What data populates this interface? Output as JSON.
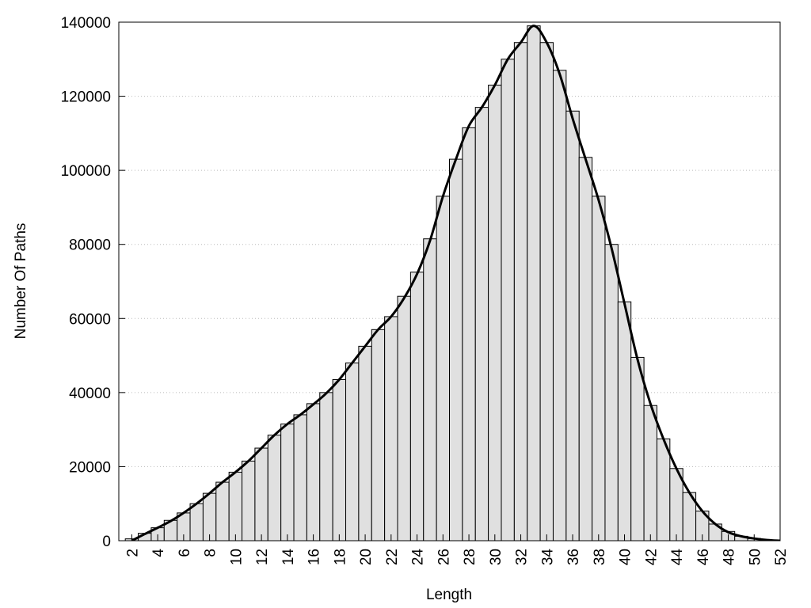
{
  "chart_data": {
    "type": "histogram",
    "xlabel": "Length",
    "ylabel": "Number Of Paths",
    "bins": [
      1.5,
      2.5,
      3.5,
      4.5,
      5.5,
      6.5,
      7.5,
      8.5,
      9.5,
      10.5,
      11.5,
      12.5,
      13.5,
      14.5,
      15.5,
      16.5,
      17.5,
      18.5,
      19.5,
      20.5,
      21.5,
      22.5,
      23.5,
      24.5,
      25.5,
      26.5,
      27.5,
      28.5,
      29.5,
      30.5,
      31.5,
      32.5,
      33.5,
      34.5,
      35.5,
      36.5,
      37.5,
      38.5,
      39.5,
      40.5,
      41.5,
      42.5,
      43.5,
      44.5,
      45.5,
      46.5,
      47.5,
      48.5,
      49.5,
      50.5,
      51.5
    ],
    "values": [
      500,
      2000,
      3500,
      5500,
      7500,
      10000,
      12800,
      15800,
      18500,
      21500,
      25000,
      28500,
      31500,
      34000,
      37000,
      40000,
      43500,
      48000,
      52500,
      57000,
      60500,
      66000,
      72500,
      81500,
      93000,
      103000,
      111500,
      117000,
      123000,
      130000,
      134500,
      139000,
      134500,
      127000,
      116000,
      103500,
      93000,
      80000,
      64500,
      49500,
      36500,
      27500,
      19500,
      13000,
      8000,
      4500,
      2500,
      1200,
      600,
      200
    ],
    "color": "#e0e0e0",
    "curve": {
      "color": "#000000",
      "x": [
        2,
        3,
        4,
        5,
        6,
        7,
        8,
        9,
        10,
        11,
        12,
        13,
        14,
        15,
        16,
        17,
        18,
        19,
        20,
        21,
        22,
        23,
        24,
        25,
        26,
        27,
        28,
        29,
        30,
        31,
        32,
        33,
        34,
        35,
        36,
        37,
        38,
        39,
        40,
        41,
        42,
        43,
        44,
        45,
        46,
        47,
        48,
        49,
        50,
        51,
        52
      ],
      "values": [
        0,
        1800,
        3500,
        5300,
        7500,
        10000,
        12800,
        15800,
        18500,
        21500,
        25000,
        28500,
        31500,
        34000,
        36800,
        39800,
        43500,
        48000,
        52500,
        57000,
        60500,
        65500,
        72000,
        81000,
        93000,
        103000,
        112000,
        117000,
        123000,
        130000,
        134500,
        139000,
        134500,
        126000,
        114000,
        103000,
        92000,
        79000,
        64000,
        49000,
        37000,
        27500,
        19500,
        13000,
        8000,
        4500,
        2300,
        1200,
        600,
        200,
        0
      ]
    },
    "xlim": [
      1,
      52
    ],
    "xticks": [
      2,
      4,
      6,
      8,
      10,
      12,
      14,
      16,
      18,
      20,
      22,
      24,
      26,
      28,
      30,
      32,
      34,
      36,
      38,
      40,
      42,
      44,
      46,
      48,
      50,
      52
    ],
    "ylim": [
      0,
      140000
    ],
    "yticks": [
      0,
      20000,
      40000,
      60000,
      80000,
      100000,
      120000,
      140000
    ],
    "grid": true
  }
}
